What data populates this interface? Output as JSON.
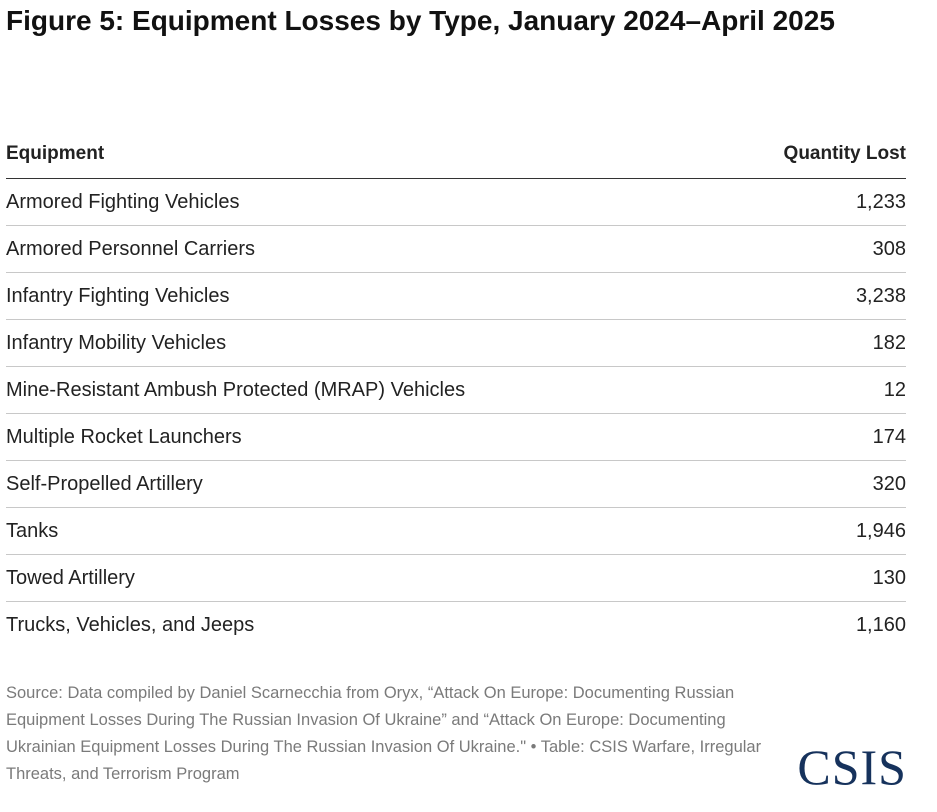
{
  "chart_data": {
    "type": "table",
    "title": "Figure 5: Equipment Losses by Type, January 2024–April 2025",
    "columns": [
      "Equipment",
      "Quantity Lost"
    ],
    "rows": [
      {
        "label": "Armored Fighting Vehicles",
        "value": "1,233"
      },
      {
        "label": "Armored Personnel Carriers",
        "value": "308"
      },
      {
        "label": "Infantry Fighting Vehicles",
        "value": "3,238"
      },
      {
        "label": "Infantry Mobility Vehicles",
        "value": "182"
      },
      {
        "label": "Mine-Resistant Ambush Protected (MRAP) Vehicles",
        "value": "12"
      },
      {
        "label": "Multiple Rocket Launchers",
        "value": "174"
      },
      {
        "label": "Self-Propelled Artillery",
        "value": "320"
      },
      {
        "label": "Tanks",
        "value": "1,946"
      },
      {
        "label": "Towed Artillery",
        "value": "130"
      },
      {
        "label": "Trucks, Vehicles, and Jeeps",
        "value": "1,160"
      }
    ]
  },
  "source": "Source: Data compiled by Daniel Scarnecchia from Oryx, “Attack On Europe: Documenting Russian Equipment Losses During The Russian Invasion Of Ukraine” and “Attack On Europe: Documenting Ukrainian Equipment Losses During The Russian Invasion Of Ukraine.\" • Table: CSIS Warfare, Irregular Threats, and Terrorism Program",
  "logo": "CSIS",
  "colors": {
    "logo": "#16325c",
    "source_text": "#7a7a7a"
  }
}
